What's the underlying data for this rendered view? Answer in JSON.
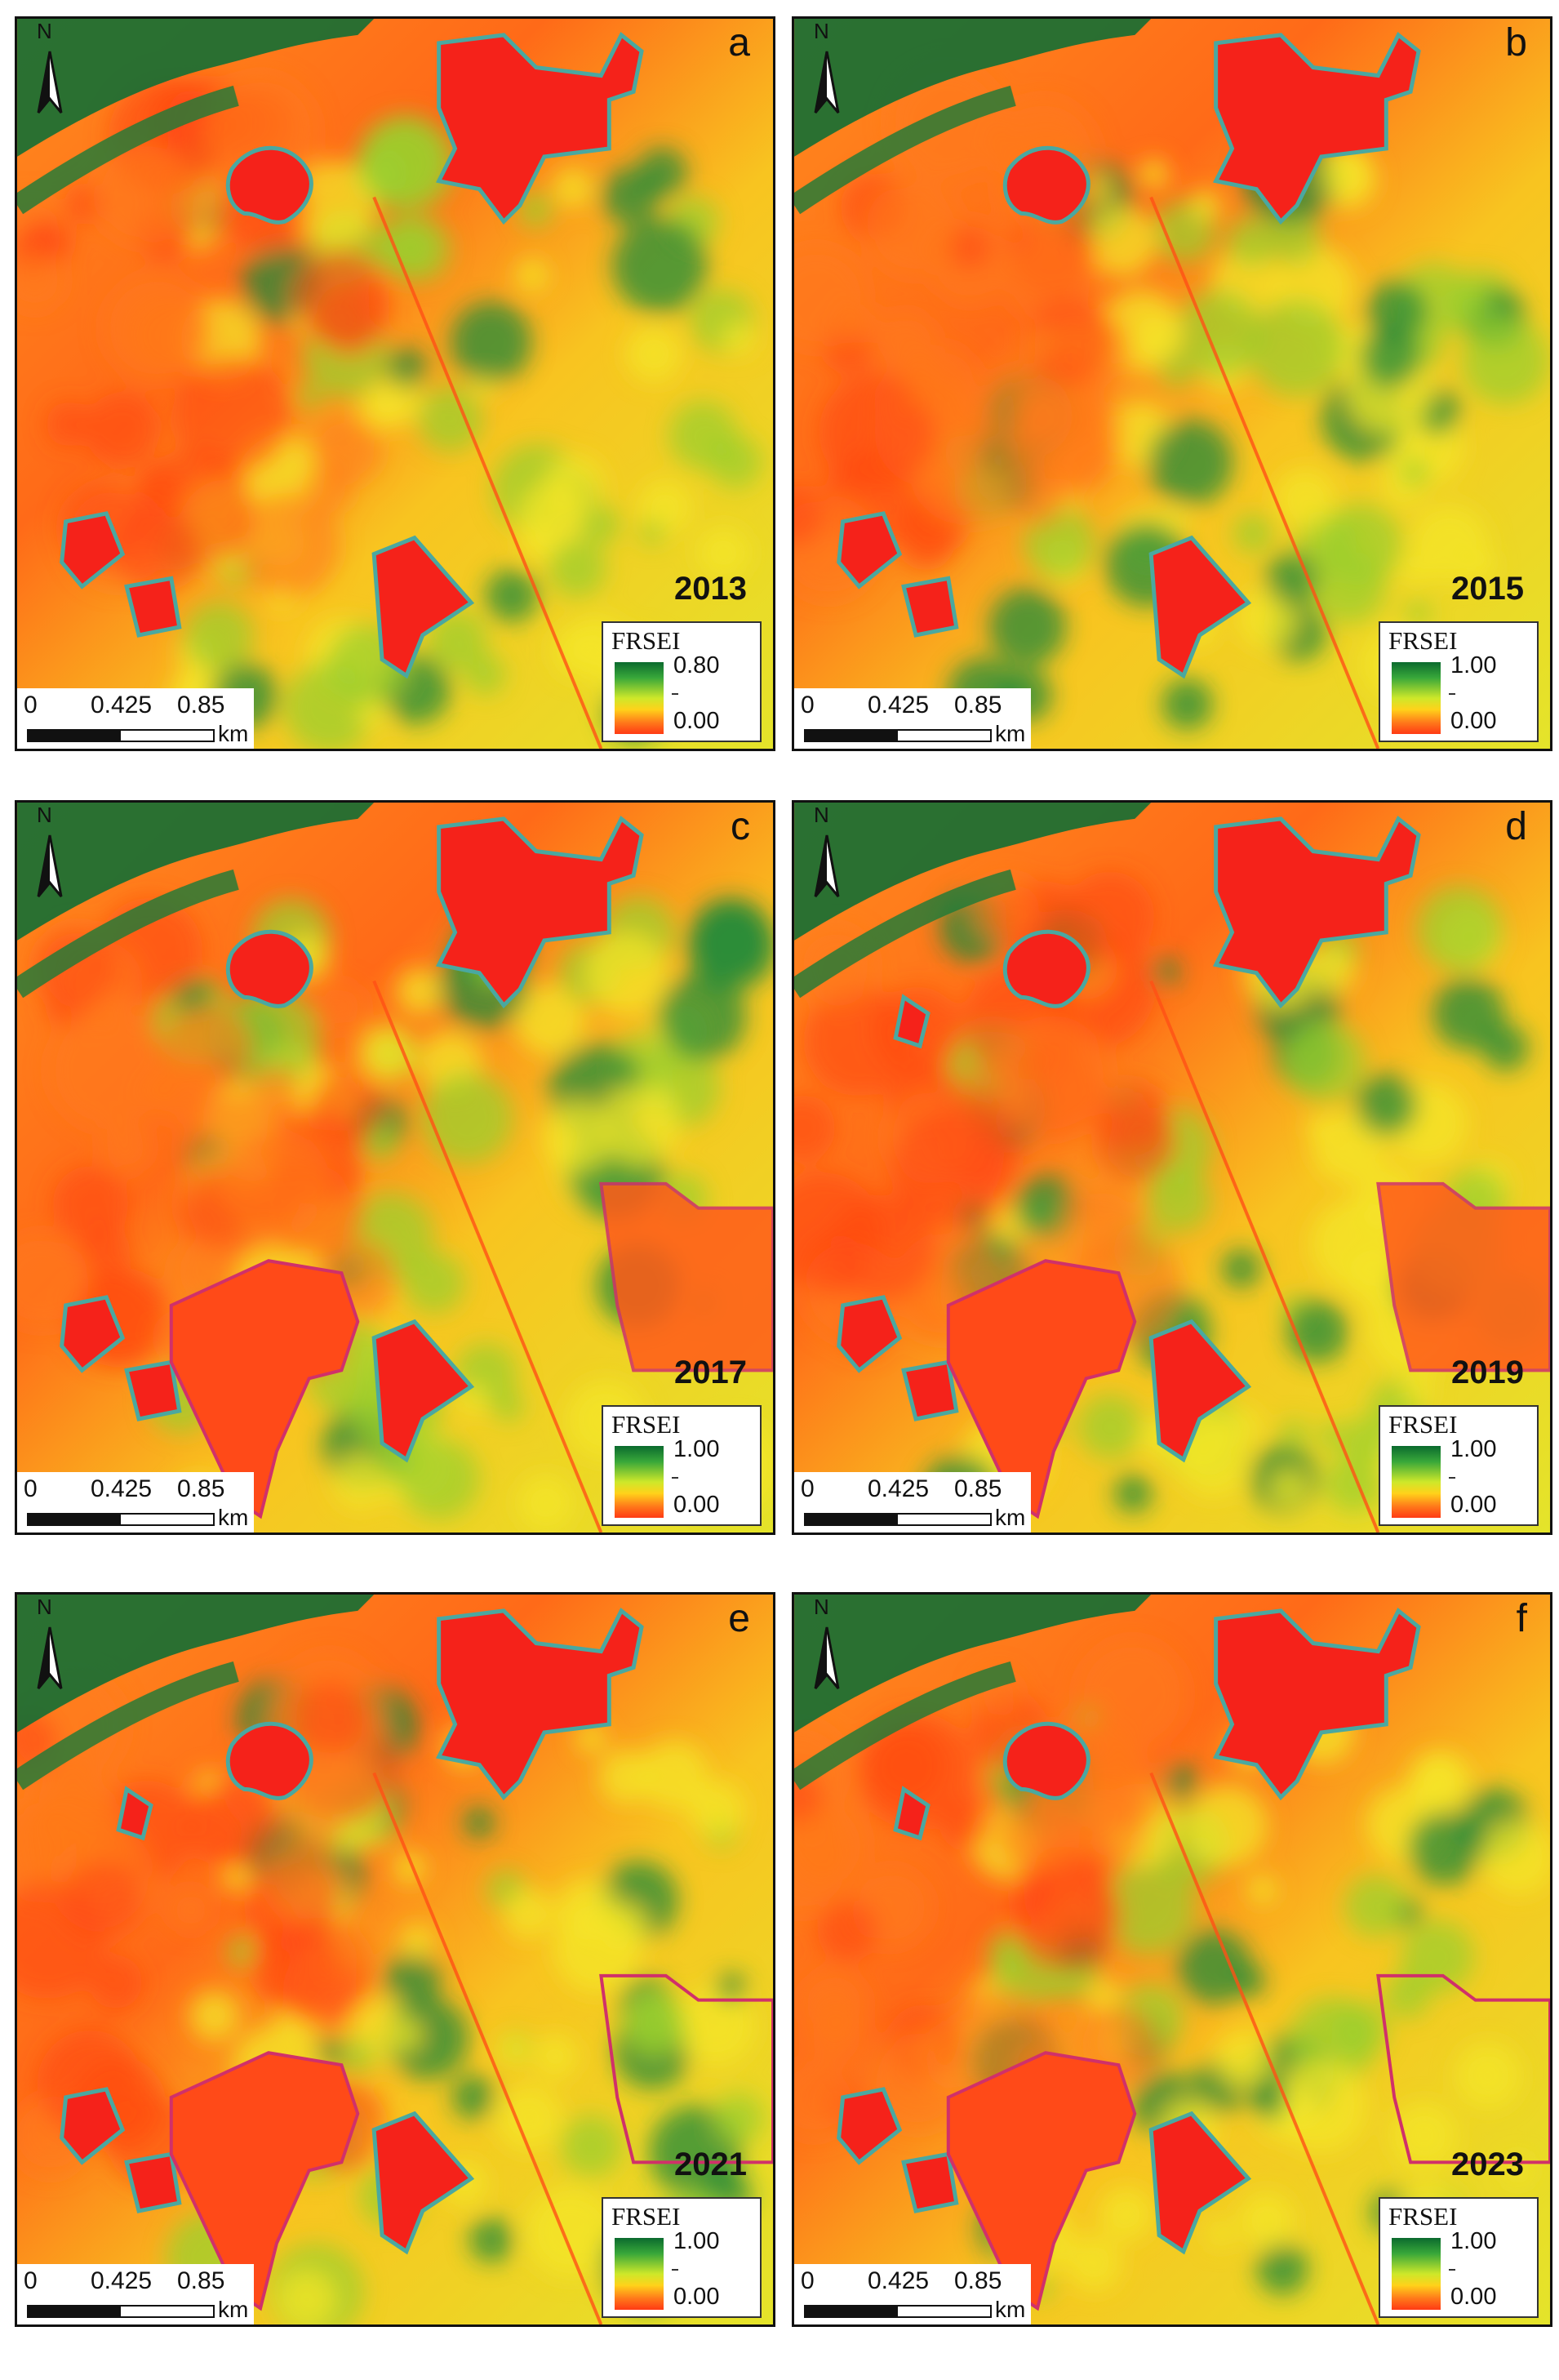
{
  "north_label": "N",
  "legend_title": "FRSEI",
  "legend_min": "0.00",
  "scale": {
    "tick0": "0",
    "tick1": "0.425",
    "tick2": "0.85",
    "unit": "km"
  },
  "colors": {
    "high": "#0b6a2e",
    "mid": "#cde82a",
    "low": "#ff3a14",
    "boundary_cyan": "#4aa8a0",
    "boundary_magenta": "#d0306a"
  },
  "panels": [
    {
      "letter": "a",
      "year": "2013",
      "legend_max": "0.80"
    },
    {
      "letter": "b",
      "year": "2015",
      "legend_max": "1.00"
    },
    {
      "letter": "c",
      "year": "2017",
      "legend_max": "1.00"
    },
    {
      "letter": "d",
      "year": "2019",
      "legend_max": "1.00"
    },
    {
      "letter": "e",
      "year": "2021",
      "legend_max": "1.00"
    },
    {
      "letter": "f",
      "year": "2023",
      "legend_max": "1.00"
    }
  ]
}
